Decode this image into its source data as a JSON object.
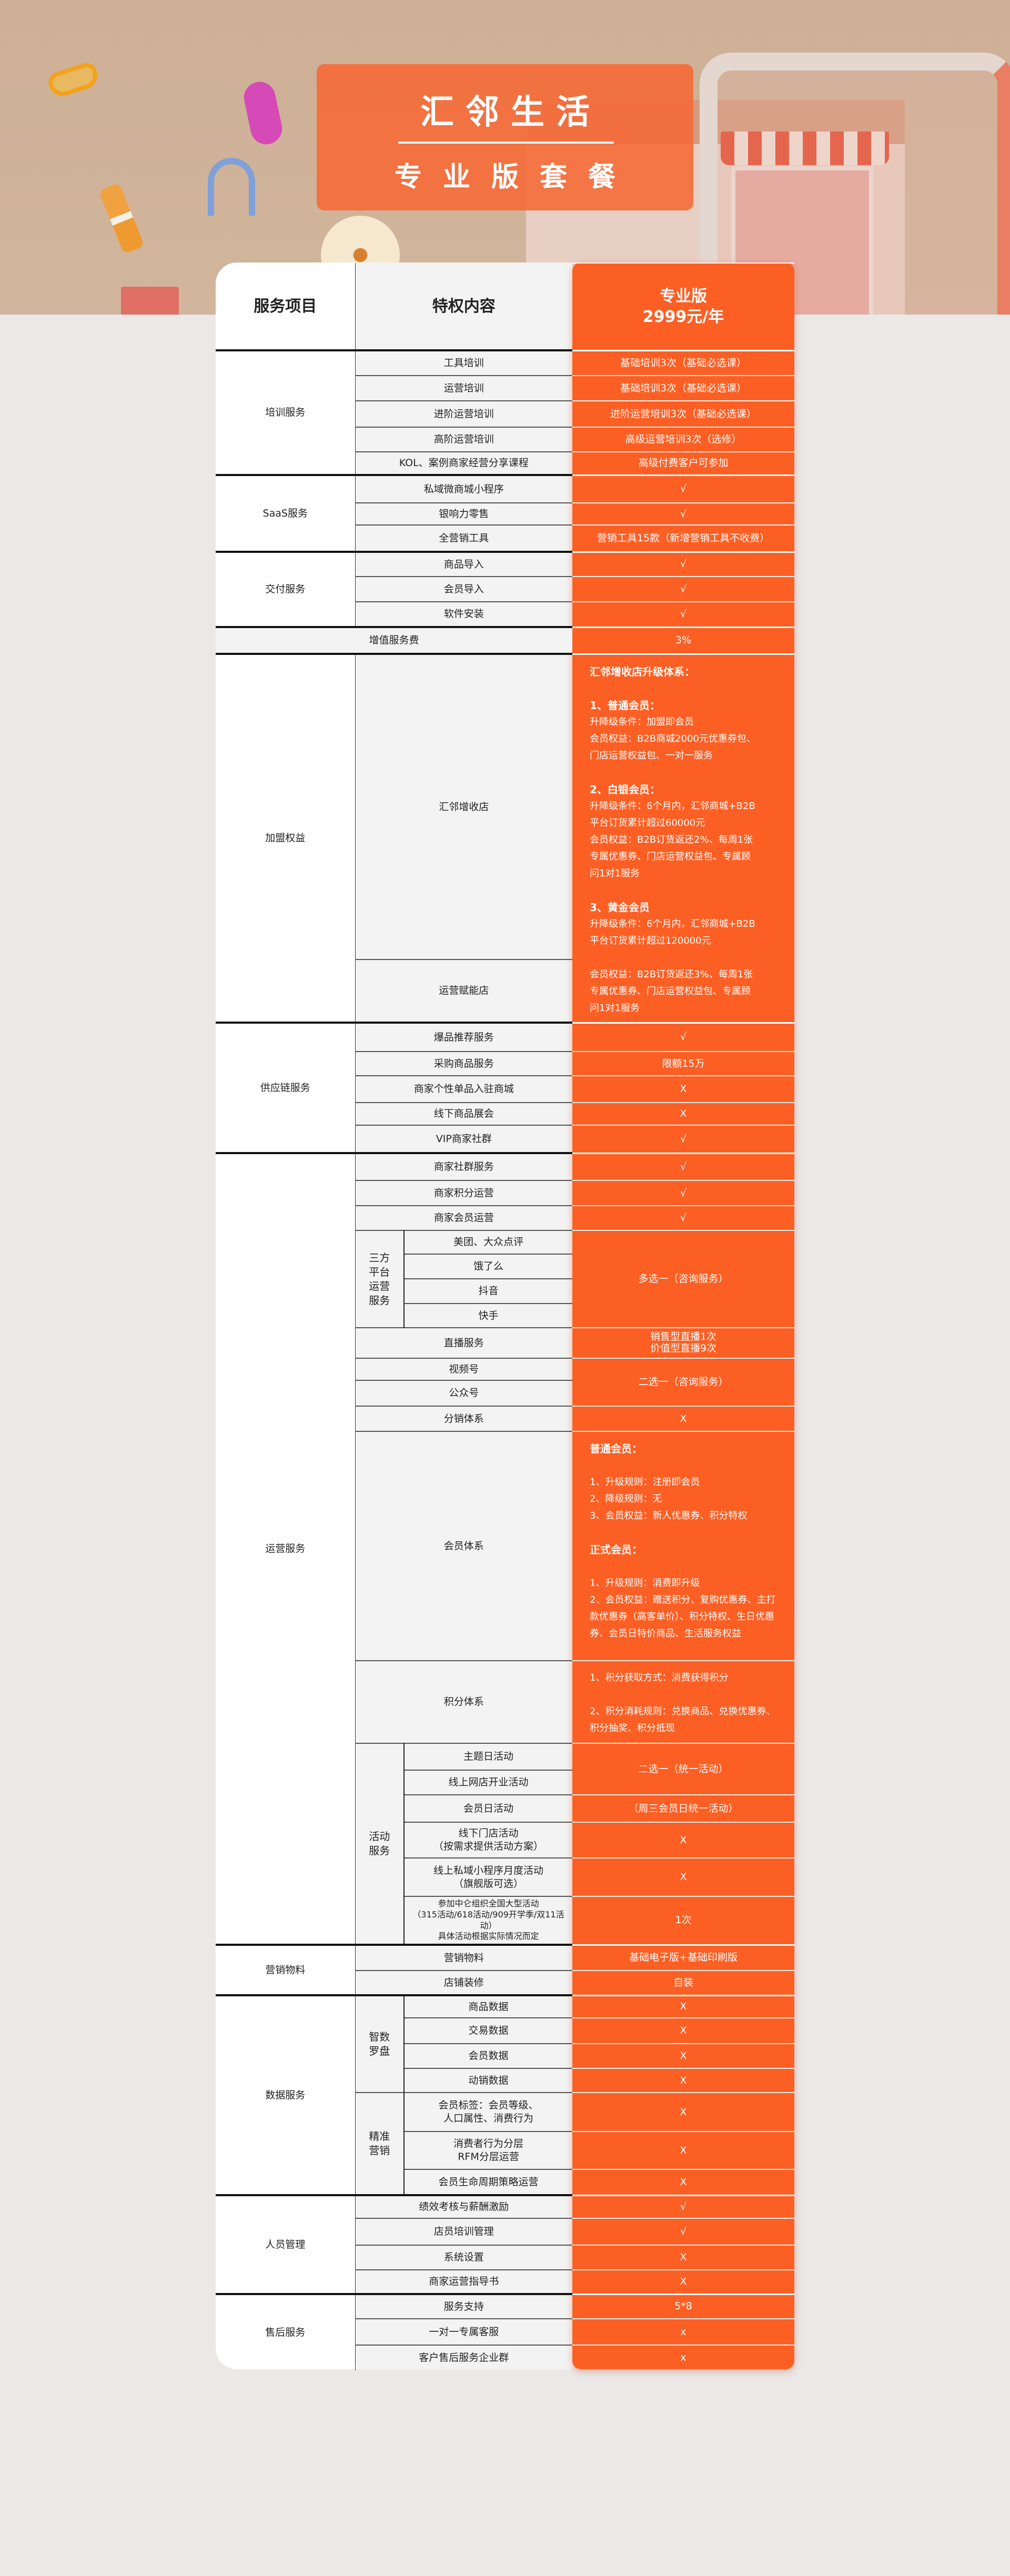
{
  "banner": {
    "title": "汇邻生活",
    "subtitle": "专业版套餐"
  },
  "colors": {
    "accent": "#fc5f24",
    "banner_bg": "#cdb096",
    "page_bg": "#ebe8e8"
  },
  "table": {
    "headers": {
      "service": "服务项目",
      "content": "特权内容",
      "plan_name": "专业版",
      "plan_price": "2999元/年"
    },
    "groups": [
      {
        "label": "培训服务",
        "rows": [
          {
            "item": "工具培训",
            "value": "基础培训3次（基础必选课）"
          },
          {
            "item": "运营培训",
            "value": "基础培训3次（基础必选课）"
          },
          {
            "item": "进阶运营培训",
            "value": "进阶运营培训3次（基础必选课）"
          },
          {
            "item": "高阶运营培训",
            "value": "高级运营培训3次（选修）"
          },
          {
            "item": "KOL、案例商家经营分享课程",
            "value": "高级付费客户可参加"
          }
        ]
      },
      {
        "label": "SaaS服务",
        "rows": [
          {
            "item": "私域微商城小程序",
            "value": "√"
          },
          {
            "item": "银响力零售",
            "value": "√"
          },
          {
            "item": "全营销工具",
            "value": "营销工具15款（新增营销工具不收费）"
          }
        ]
      },
      {
        "label": "交付服务",
        "rows": [
          {
            "item": "商品导入",
            "value": "√"
          },
          {
            "item": "会员导入",
            "value": "√"
          },
          {
            "item": "软件安装",
            "value": "√"
          }
        ]
      },
      {
        "label": "增值服务费",
        "full": true,
        "value": "3%"
      },
      {
        "label": "加盟权益",
        "rows": [
          {
            "items": [
              "汇邻增收店",
              "运营赋能店"
            ],
            "value": [
              {
                "text": "汇邻增收店升级体系：",
                "bold": true
              },
              {
                "text": ""
              },
              {
                "text": "1、普通会员：",
                "bold": true
              },
              {
                "text": "升降级条件：加盟即会员"
              },
              {
                "text": "会员权益：B2B商城2000元优惠券包、"
              },
              {
                "text": "门店运营权益包、一对一服务"
              },
              {
                "text": ""
              },
              {
                "text": "2、白银会员：",
                "bold": true
              },
              {
                "text": "升降级条件：6个月内，汇邻商城+B2B"
              },
              {
                "text": "平台订货累计超过60000元"
              },
              {
                "text": "会员权益：B2B订货返还2%、每周1张"
              },
              {
                "text": "专属优惠券、门店运营权益包、专属顾"
              },
              {
                "text": "问1对1服务"
              },
              {
                "text": ""
              },
              {
                "text": "3、黄金会员",
                "bold": true
              },
              {
                "text": "升降级条件：6个月内，汇邻商城+B2B"
              },
              {
                "text": "平台订货累计超过120000元"
              },
              {
                "text": ""
              },
              {
                "text": "会员权益：B2B订货返还3%、每周1张"
              },
              {
                "text": "专属优惠券、门店运营权益包、专属顾"
              },
              {
                "text": "问1对1服务"
              }
            ]
          }
        ]
      },
      {
        "label": "供应链服务",
        "rows": [
          {
            "item": "爆品推荐服务",
            "value": "√"
          },
          {
            "item": "采购商品服务",
            "value": "限额15万"
          },
          {
            "item": "商家个性单品入驻商城",
            "value": "X"
          },
          {
            "item": "线下商品展会",
            "value": "X"
          },
          {
            "item": "VIP商家社群",
            "value": "√"
          }
        ]
      },
      {
        "label": "运营服务",
        "rows": [
          {
            "item": "商家社群服务",
            "value": "√"
          },
          {
            "item": "商家积分运营",
            "value": "√"
          },
          {
            "item": "商家会员运营",
            "value": "√"
          },
          {
            "sub": "三方平台运营服务",
            "rows": [
              {
                "items": [
                  "美团、大众点评",
                  "饿了么",
                  "抖音",
                  "快手"
                ],
                "value": "多选一（咨询服务）"
              }
            ]
          },
          {
            "item": "直播服务",
            "value": "销售型直播1次\n价值型直播9次"
          },
          {
            "items": [
              "视频号",
              "公众号"
            ],
            "value": "二选一（咨询服务）"
          },
          {
            "item": "分销体系",
            "value": "X"
          },
          {
            "item": "会员体系",
            "value": [
              {
                "text": "普通会员：",
                "bold": true
              },
              {
                "text": ""
              },
              {
                "text": "1、升级规则：注册即会员"
              },
              {
                "text": "2、降级规则：无"
              },
              {
                "text": "3、会员权益：新人优惠券、积分特权"
              },
              {
                "text": ""
              },
              {
                "text": "正式会员：",
                "bold": true
              },
              {
                "text": ""
              },
              {
                "text": "1、升级规则：消费即升级"
              },
              {
                "text": "2、会员权益：赠送积分、复购优惠券、主打款优惠券（高客单价）、积分特权、生日优惠券、会员日特价商品、生活服务权益"
              }
            ]
          },
          {
            "item": "积分体系",
            "value": [
              {
                "text": "1、积分获取方式：消费获得积分"
              },
              {
                "text": ""
              },
              {
                "text": "2、积分消耗规则：兑换商品、兑换优惠券、积分抽奖、积分抵现"
              }
            ]
          },
          {
            "sub": "活动服务",
            "rows": [
              {
                "items": [
                  "主题日活动",
                  "线上网店开业活动"
                ],
                "value": "二选一（统一活动）"
              },
              {
                "item": "会员日活动",
                "value": "（周三会员日统一活动）"
              },
              {
                "item": "线下门店活动\n（按需求提供活动方案）",
                "value": "X"
              },
              {
                "item": "线上私域小程序月度活动\n（旗舰版可选）",
                "value": "X"
              },
              {
                "item": "参加中仑组织全国大型活动\n（315活动/618活动/909开学季/双11活动）\n具体活动根据实际情况而定",
                "value": "1次"
              }
            ]
          }
        ]
      },
      {
        "label": "营销物料",
        "rows": [
          {
            "item": "营销物料",
            "value": "基础电子版+基础印刷版"
          },
          {
            "item": "店铺装修",
            "value": "自装"
          }
        ]
      },
      {
        "label": "数据服务",
        "rows": [
          {
            "sub": "智数罗盘",
            "rows": [
              {
                "item": "商品数据",
                "value": "X"
              },
              {
                "item": "交易数据",
                "value": "X"
              },
              {
                "item": "会员数据",
                "value": "X"
              },
              {
                "item": "动销数据",
                "value": "X"
              }
            ]
          },
          {
            "sub": "精准营销",
            "rows": [
              {
                "item": "会员标签：会员等级、\n人口属性、消费行为",
                "value": "X"
              },
              {
                "item": "消费者行为分层\nRFM分层运营",
                "value": "X"
              },
              {
                "item": "会员生命周期策略运营",
                "value": "X"
              }
            ]
          }
        ]
      },
      {
        "label": "人员管理",
        "rows": [
          {
            "item": "绩效考核与薪酬激励",
            "value": "√"
          },
          {
            "item": "店员培训管理",
            "value": "√"
          },
          {
            "item": "系统设置",
            "value": "X"
          },
          {
            "item": "商家运营指导书",
            "value": "X"
          }
        ]
      },
      {
        "label": "售后服务",
        "rows": [
          {
            "item": "服务支持",
            "value": "5*8"
          },
          {
            "item": "一对一专属客服",
            "value": "x"
          },
          {
            "item": "客户售后服务企业群",
            "value": "x"
          }
        ]
      }
    ]
  }
}
